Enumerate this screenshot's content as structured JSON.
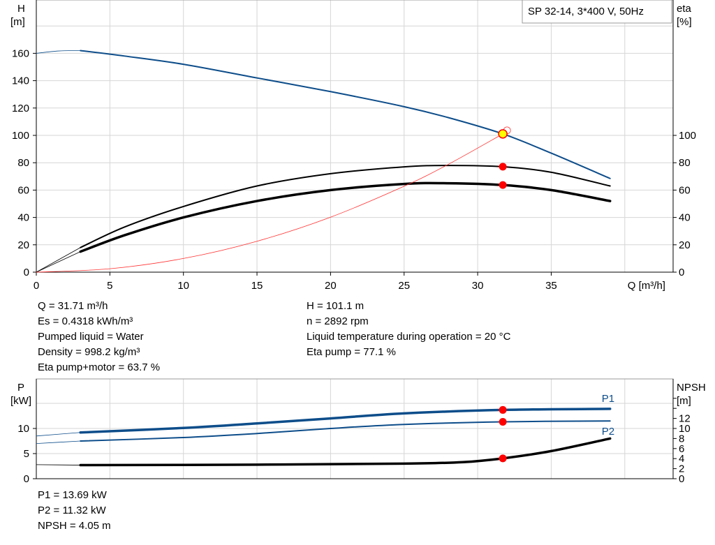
{
  "chart_data": [
    {
      "type": "line",
      "title": "SP 32-14, 3*400 V, 50Hz",
      "xlabel": "Q [m³/h]",
      "ylabel_left": [
        "H",
        "[m]"
      ],
      "ylabel_right": [
        "eta",
        "[%]"
      ],
      "xlim": [
        0,
        43
      ],
      "ylim": [
        0,
        200
      ],
      "y2lim": [
        0,
        200
      ],
      "xticks": [
        0,
        5,
        10,
        15,
        20,
        25,
        30,
        35
      ],
      "yticks": [
        0,
        20,
        40,
        60,
        80,
        100,
        120,
        140,
        160
      ],
      "y2ticks": [
        0,
        20,
        40,
        60,
        80,
        100
      ],
      "grid": true,
      "series": [
        {
          "id": "H",
          "color": "#0d4d8a",
          "axis": "left",
          "x": [
            0,
            1.5,
            3,
            6,
            10,
            15,
            20,
            25,
            28,
            31.71,
            35,
            39
          ],
          "y": [
            160,
            161.7,
            162,
            158,
            152,
            142,
            132,
            121,
            113,
            101.1,
            87,
            68.5
          ],
          "extrap_to": 3
        },
        {
          "id": "eta_pump",
          "color": "#000000",
          "axis": "right",
          "x": [
            0,
            3,
            6,
            10,
            15,
            20,
            25,
            28,
            31.71,
            35,
            39
          ],
          "y": [
            0,
            18,
            33,
            48,
            63,
            72,
            77,
            78,
            77.1,
            73,
            63
          ],
          "extrap_to": 3
        },
        {
          "id": "eta_pump_motor",
          "color": "#000000",
          "axis": "right",
          "thick": true,
          "x": [
            0,
            3,
            6,
            10,
            15,
            20,
            25,
            28,
            31.71,
            35,
            39
          ],
          "y": [
            0,
            15,
            27,
            40,
            52,
            60,
            64.5,
            65,
            63.7,
            60,
            52
          ],
          "extrap_to": 3
        },
        {
          "id": "system",
          "color": "#ff3030",
          "axis": "left",
          "thin": true,
          "x": [
            0,
            5,
            10,
            15,
            20,
            25,
            28,
            31.71
          ],
          "y": [
            0,
            2.5,
            10,
            22.6,
            40.2,
            62.8,
            78.8,
            101.1
          ]
        }
      ],
      "duty_points": [
        {
          "x": 31.71,
          "y": 101.1,
          "color": "#ffff00"
        },
        {
          "x": 31.71,
          "y": 77.1,
          "color": "#ff0000"
        },
        {
          "x": 31.71,
          "y": 63.7,
          "color": "#ff0000"
        }
      ]
    },
    {
      "type": "line",
      "xlim": [
        0,
        43
      ],
      "ylim": [
        0,
        20
      ],
      "y2lim": [
        0,
        20
      ],
      "ylabel_left": [
        "P",
        "[kW]"
      ],
      "ylabel_right": [
        "NPSH",
        "[m]"
      ],
      "yticks": [
        0,
        5,
        10
      ],
      "y2ticks": [
        0,
        2,
        4,
        6,
        8,
        10,
        12
      ],
      "grid": true,
      "series": [
        {
          "id": "P1",
          "name": "P1",
          "color": "#0d4d8a",
          "thick": true,
          "x": [
            0,
            3,
            10,
            15,
            20,
            25,
            31.71,
            39
          ],
          "y": [
            8.5,
            9.2,
            10.1,
            11,
            12,
            13,
            13.69,
            13.9
          ],
          "extrap_to": 3
        },
        {
          "id": "P2",
          "name": "P2",
          "color": "#0d4d8a",
          "x": [
            0,
            3,
            10,
            15,
            20,
            25,
            31.71,
            39
          ],
          "y": [
            7,
            7.5,
            8.2,
            9,
            10,
            10.8,
            11.32,
            11.5
          ],
          "extrap_to": 3
        },
        {
          "id": "NPSH",
          "color": "#000000",
          "thick": true,
          "x": [
            0,
            3,
            15,
            25,
            29,
            31.71,
            35,
            39
          ],
          "y": [
            2.8,
            2.7,
            2.8,
            3,
            3.3,
            4.05,
            5.5,
            8
          ],
          "extrap_to": 3
        }
      ],
      "duty_points": [
        {
          "x": 31.71,
          "y": 13.69,
          "color": "#ff0000"
        },
        {
          "x": 31.71,
          "y": 11.32,
          "color": "#ff0000"
        },
        {
          "x": 31.71,
          "y": 4.05,
          "color": "#ff0000"
        }
      ]
    }
  ],
  "info_top_left": [
    "Q = 31.71 m³/h",
    "Es = 0.4318 kWh/m³",
    "Pumped liquid = Water",
    "Density = 998.2 kg/m³",
    "Eta pump+motor = 63.7 %"
  ],
  "info_top_right": [
    "H = 101.1 m",
    "n = 2892 rpm",
    "Liquid temperature during operation = 20 °C",
    "Eta pump = 77.1 %"
  ],
  "info_bottom": [
    "P1 = 13.69 kW",
    "P2 = 11.32 kW",
    "NPSH = 4.05 m"
  ]
}
